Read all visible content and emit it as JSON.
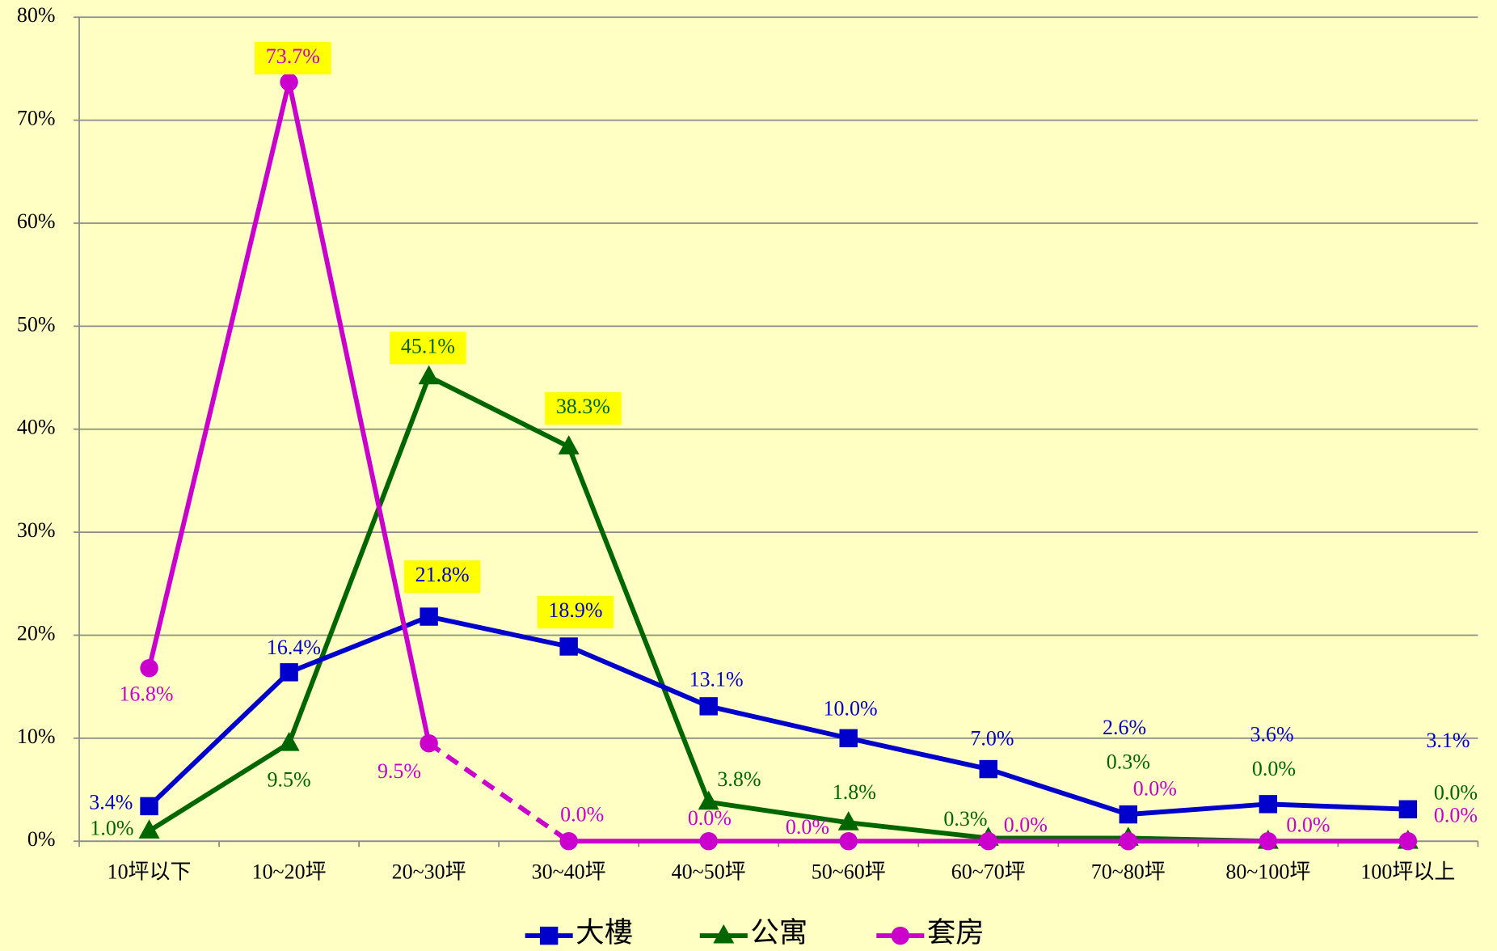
{
  "chart_data": {
    "type": "line",
    "categories": [
      "10坪以下",
      "10~20坪",
      "20~30坪",
      "30~40坪",
      "40~50坪",
      "50~60坪",
      "60~70坪",
      "70~80坪",
      "80~100坪",
      "100坪以上"
    ],
    "series": [
      {
        "name": "大樓",
        "color": "#0000cc",
        "marker": "square",
        "values": [
          3.4,
          16.4,
          21.8,
          18.9,
          13.1,
          10.0,
          7.0,
          2.6,
          3.6,
          3.1
        ],
        "value_labels": [
          "3.4%",
          "16.4%",
          "21.8%",
          "18.9%",
          "13.1%",
          "10.0%",
          "7.0%",
          "2.6%",
          "3.6%",
          "3.1%"
        ],
        "highlight": [
          2,
          3
        ]
      },
      {
        "name": "公寓",
        "color": "#006600",
        "marker": "triangle",
        "values": [
          1.0,
          9.5,
          45.1,
          38.3,
          3.8,
          1.8,
          0.3,
          0.3,
          0.0,
          0.0
        ],
        "value_labels": [
          "1.0%",
          "9.5%",
          "45.1%",
          "38.3%",
          "3.8%",
          "1.8%",
          "0.3%",
          "0.3%",
          "0.0%",
          "0.0%"
        ],
        "highlight": [
          2,
          3
        ]
      },
      {
        "name": "套房",
        "color": "#cc00cc",
        "marker": "circle",
        "values": [
          16.8,
          73.7,
          9.5,
          0.0,
          0.0,
          0.0,
          0.0,
          0.0,
          0.0,
          0.0
        ],
        "value_labels": [
          "16.8%",
          "73.7%",
          "9.5%",
          "0.0%",
          "0.0%",
          "0.0%",
          "0.0%",
          "0.0%",
          "0.0%",
          "0.0%"
        ],
        "highlight": [
          1
        ],
        "dashed_segments": [
          2
        ]
      }
    ],
    "ylim": [
      0,
      80
    ],
    "yticks": [
      {
        "value": 0,
        "label": "0%"
      },
      {
        "value": 10,
        "label": "10%"
      },
      {
        "value": 20,
        "label": "20%"
      },
      {
        "value": 30,
        "label": "30%"
      },
      {
        "value": 40,
        "label": "40%"
      },
      {
        "value": 50,
        "label": "50%"
      },
      {
        "value": 60,
        "label": "60%"
      },
      {
        "value": 70,
        "label": "70%"
      },
      {
        "value": 80,
        "label": "80%"
      }
    ],
    "grid": true,
    "legend": "bottom"
  }
}
